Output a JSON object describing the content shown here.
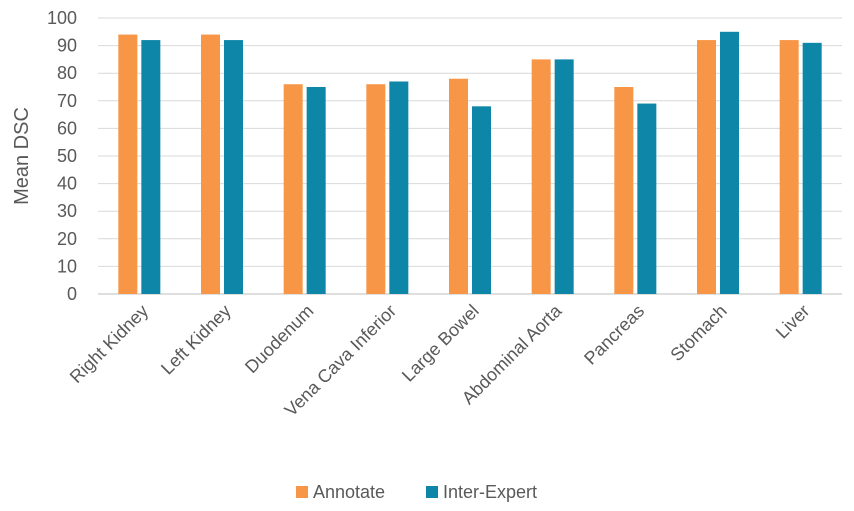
{
  "chart_data": {
    "type": "bar",
    "title": "",
    "xlabel": "",
    "ylabel": "Mean DSC",
    "ylim": [
      0,
      100
    ],
    "yticks": [
      0,
      10,
      20,
      30,
      40,
      50,
      60,
      70,
      80,
      90,
      100
    ],
    "grid": true,
    "legend_position": "bottom",
    "categories": [
      "Right Kidney",
      "Left Kidney",
      "Duodenum",
      "Vena Cava Inferior",
      "Large Bowel",
      "Abdominal Aorta",
      "Pancreas",
      "Stomach",
      "Liver"
    ],
    "series": [
      {
        "name": "Annotate",
        "color": "#F79646",
        "values": [
          94,
          94,
          76,
          76,
          78,
          85,
          75,
          92,
          92
        ]
      },
      {
        "name": "Inter-Expert",
        "color": "#0E86A8",
        "values": [
          92,
          92,
          75,
          77,
          68,
          85,
          69,
          95,
          91
        ]
      }
    ]
  }
}
